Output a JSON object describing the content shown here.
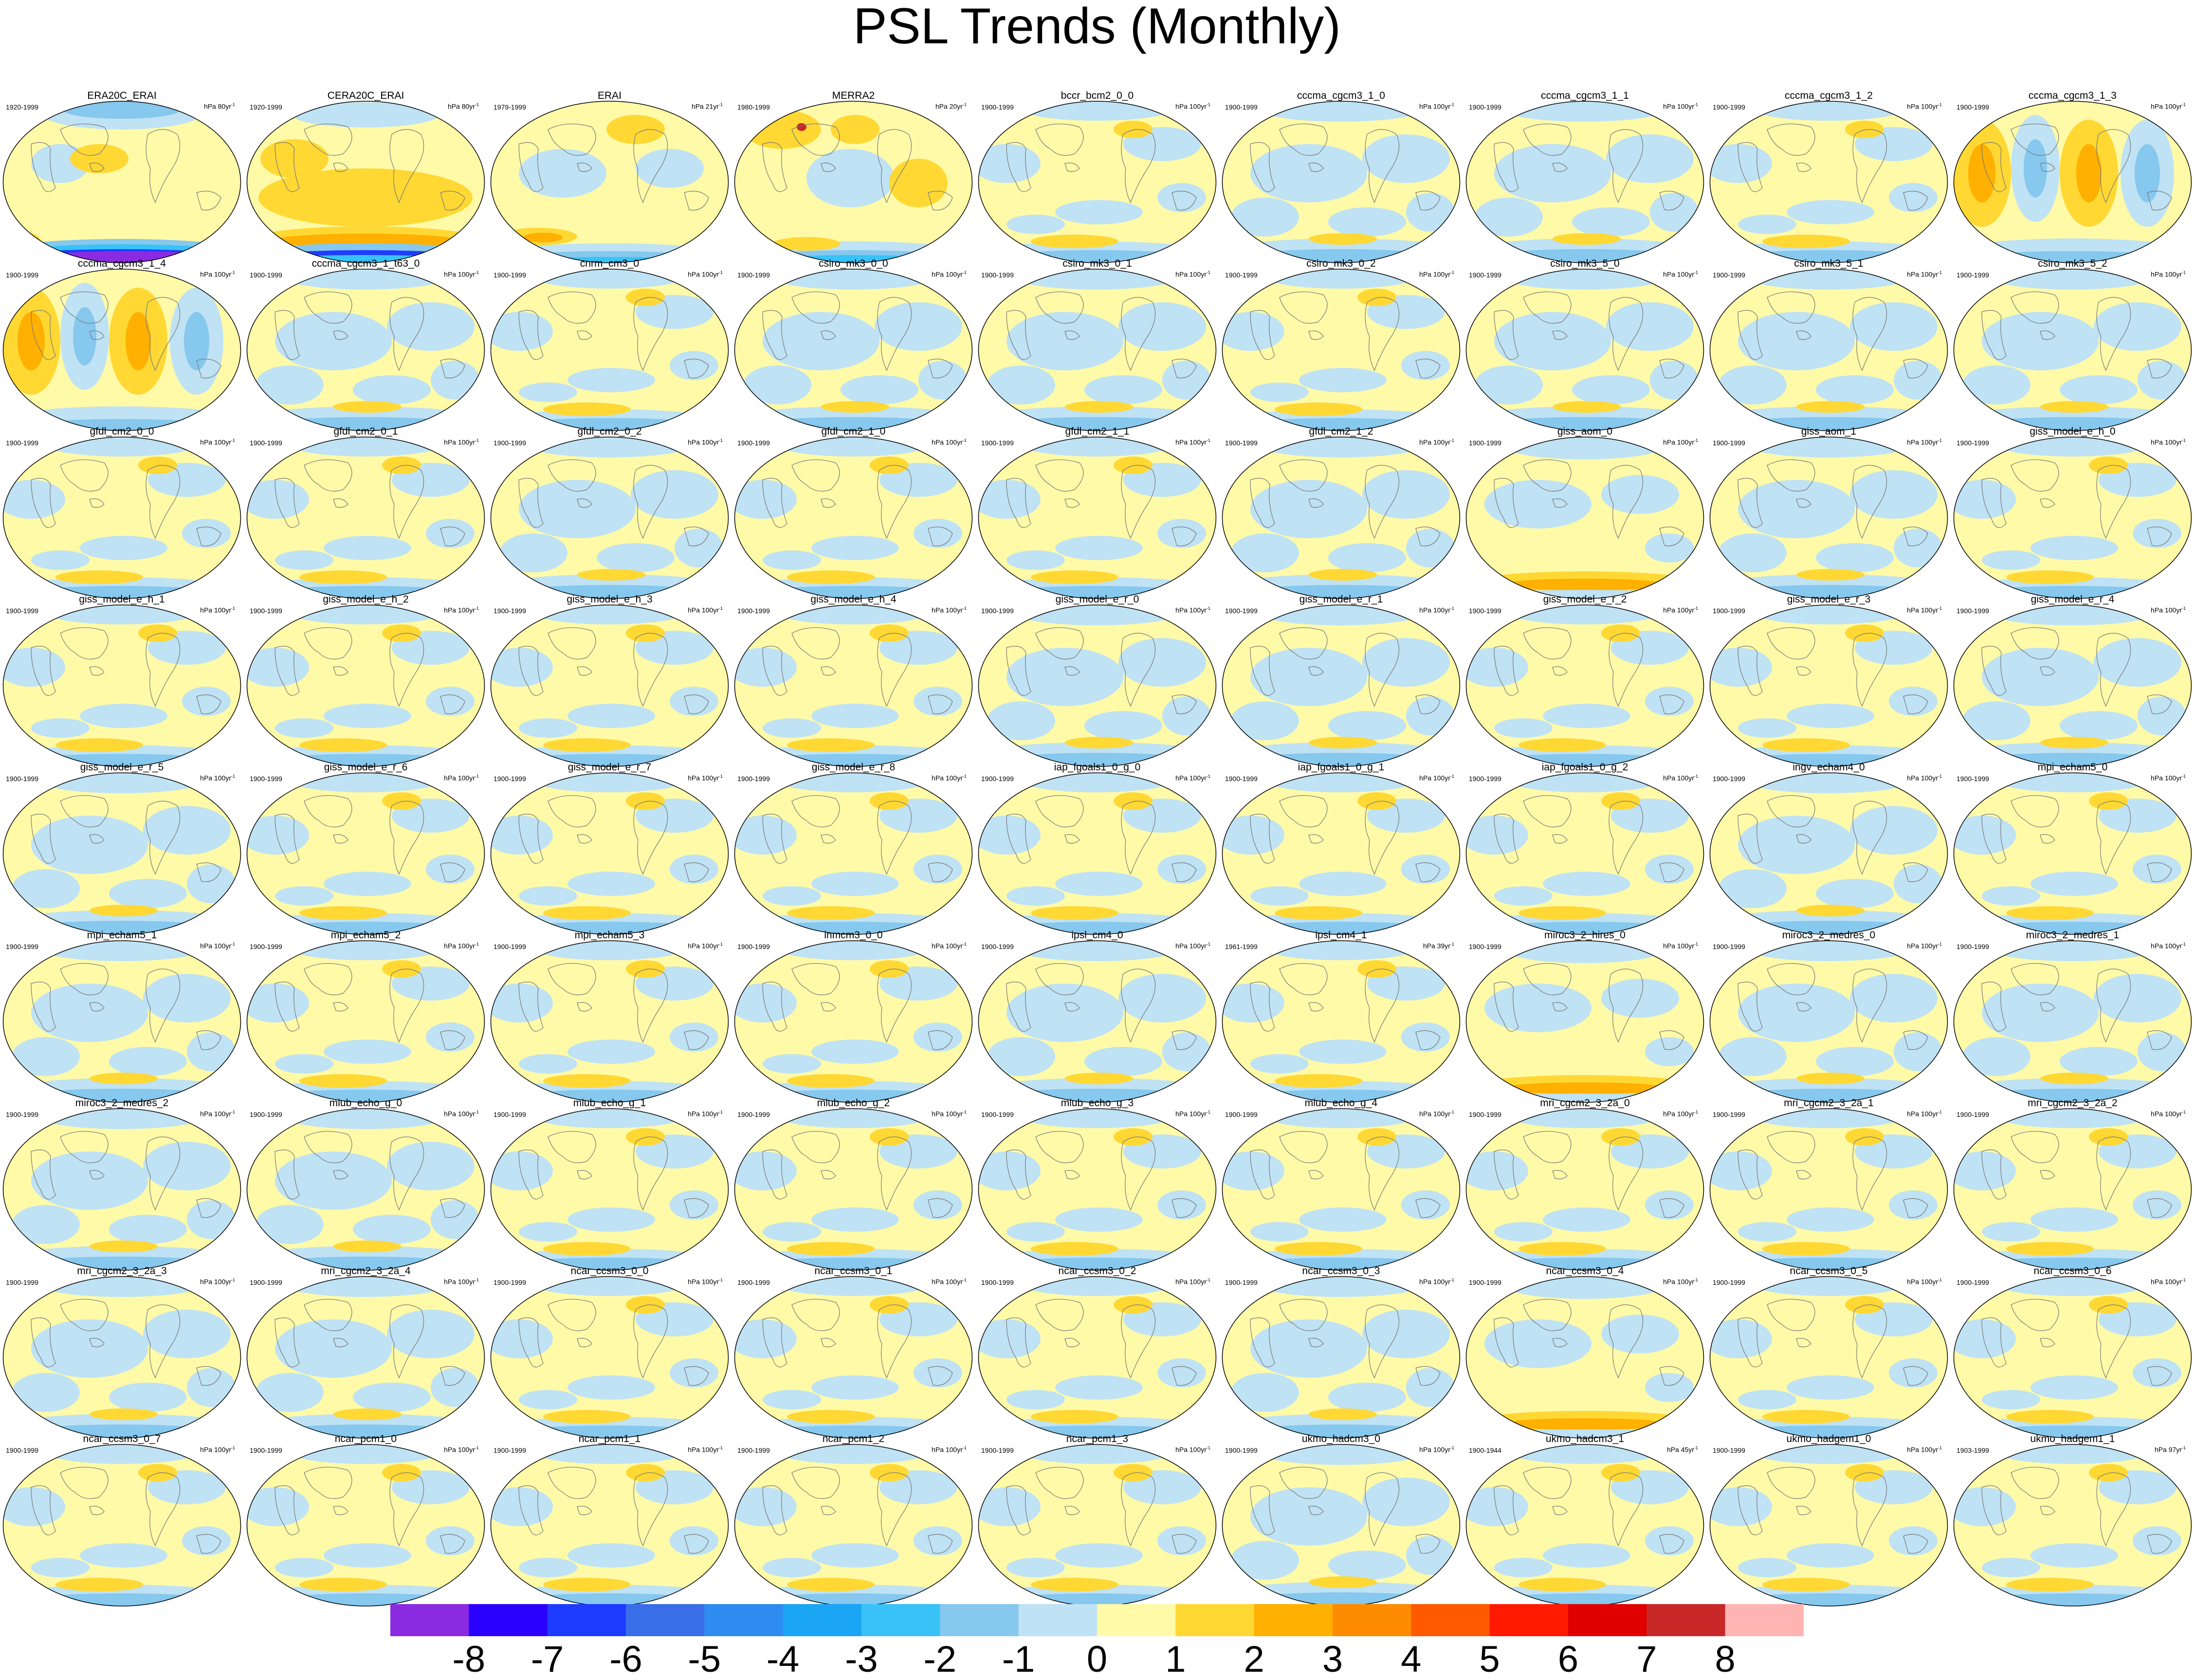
{
  "title": "PSL Trends (Monthly)",
  "colorbar": {
    "labels": [
      "-8",
      "-7",
      "-6",
      "-5",
      "-4",
      "-3",
      "-2",
      "-1",
      "0",
      "1",
      "2",
      "3",
      "4",
      "5",
      "6",
      "7",
      "8"
    ],
    "colors": [
      "#8a2be2",
      "#2a00ff",
      "#1e3cff",
      "#3a6ee8",
      "#2e8cf0",
      "#1aa6f4",
      "#38c2f8",
      "#86c8ee",
      "#bfe2f4",
      "#fffaa8",
      "#ffd834",
      "#ffb000",
      "#ff8c00",
      "#ff5a00",
      "#ff1a00",
      "#e00000",
      "#c82828",
      "#ffb4b4"
    ]
  },
  "panels": [
    {
      "name": "ERA20C_ERAI",
      "years": "1920-1999",
      "units": "hPa 80yr",
      "theme": "era20c"
    },
    {
      "name": "CERA20C_ERAI",
      "years": "1920-1999",
      "units": "hPa 80yr",
      "theme": "cera20c"
    },
    {
      "name": "ERAI",
      "years": "1979-1999",
      "units": "hPa 21yr",
      "theme": "erai"
    },
    {
      "name": "MERRA2",
      "years": "1980-1999",
      "units": "hPa 20yr",
      "theme": "merra"
    },
    {
      "name": "bccr_bcm2_0_0",
      "years": "1900-1999",
      "units": "hPa 100yr",
      "theme": "a"
    },
    {
      "name": "cccma_cgcm3_1_0",
      "years": "1900-1999",
      "units": "hPa 100yr",
      "theme": "b"
    },
    {
      "name": "cccma_cgcm3_1_1",
      "years": "1900-1999",
      "units": "hPa 100yr",
      "theme": "b"
    },
    {
      "name": "cccma_cgcm3_1_2",
      "years": "1900-1999",
      "units": "hPa 100yr",
      "theme": "a"
    },
    {
      "name": "cccma_cgcm3_1_3",
      "years": "1900-1999",
      "units": "hPa 100yr",
      "theme": "wave"
    },
    {
      "name": "cccma_cgcm3_1_4",
      "years": "1900-1999",
      "units": "hPa 100yr",
      "theme": "wave"
    },
    {
      "name": "cccma_cgcm3_1_t63_0",
      "years": "1900-1999",
      "units": "hPa 100yr",
      "theme": "b"
    },
    {
      "name": "cnrm_cm3_0",
      "years": "1900-1999",
      "units": "hPa 100yr",
      "theme": "a"
    },
    {
      "name": "csiro_mk3_0_0",
      "years": "1900-1999",
      "units": "hPa 100yr",
      "theme": "b"
    },
    {
      "name": "csiro_mk3_0_1",
      "years": "1900-1999",
      "units": "hPa 100yr",
      "theme": "b"
    },
    {
      "name": "csiro_mk3_0_2",
      "years": "1900-1999",
      "units": "hPa 100yr",
      "theme": "a"
    },
    {
      "name": "csiro_mk3_5_0",
      "years": "1900-1999",
      "units": "hPa 100yr",
      "theme": "b"
    },
    {
      "name": "csiro_mk3_5_1",
      "years": "1900-1999",
      "units": "hPa 100yr",
      "theme": "b"
    },
    {
      "name": "csiro_mk3_5_2",
      "years": "1900-1999",
      "units": "hPa 100yr",
      "theme": "b"
    },
    {
      "name": "gfdl_cm2_0_0",
      "years": "1900-1999",
      "units": "hPa 100yr",
      "theme": "a"
    },
    {
      "name": "gfdl_cm2_0_1",
      "years": "1900-1999",
      "units": "hPa 100yr",
      "theme": "a"
    },
    {
      "name": "gfdl_cm2_0_2",
      "years": "1900-1999",
      "units": "hPa 100yr",
      "theme": "b"
    },
    {
      "name": "gfdl_cm2_1_0",
      "years": "1900-1999",
      "units": "hPa 100yr",
      "theme": "a"
    },
    {
      "name": "gfdl_cm2_1_1",
      "years": "1900-1999",
      "units": "hPa 100yr",
      "theme": "a"
    },
    {
      "name": "gfdl_cm2_1_2",
      "years": "1900-1999",
      "units": "hPa 100yr",
      "theme": "b"
    },
    {
      "name": "giss_aom_0",
      "years": "1900-1999",
      "units": "hPa 100yr",
      "theme": "c"
    },
    {
      "name": "giss_aom_1",
      "years": "1900-1999",
      "units": "hPa 100yr",
      "theme": "b"
    },
    {
      "name": "giss_model_e_h_0",
      "years": "1900-1999",
      "units": "hPa 100yr",
      "theme": "a"
    },
    {
      "name": "giss_model_e_h_1",
      "years": "1900-1999",
      "units": "hPa 100yr",
      "theme": "a"
    },
    {
      "name": "giss_model_e_h_2",
      "years": "1900-1999",
      "units": "hPa 100yr",
      "theme": "a"
    },
    {
      "name": "giss_model_e_h_3",
      "years": "1900-1999",
      "units": "hPa 100yr",
      "theme": "a"
    },
    {
      "name": "giss_model_e_h_4",
      "years": "1900-1999",
      "units": "hPa 100yr",
      "theme": "a"
    },
    {
      "name": "giss_model_e_r_0",
      "years": "1900-1999",
      "units": "hPa 100yr",
      "theme": "b"
    },
    {
      "name": "giss_model_e_r_1",
      "years": "1900-1999",
      "units": "hPa 100yr",
      "theme": "b"
    },
    {
      "name": "giss_model_e_r_2",
      "years": "1900-1999",
      "units": "hPa 100yr",
      "theme": "a"
    },
    {
      "name": "giss_model_e_r_3",
      "years": "1900-1999",
      "units": "hPa 100yr",
      "theme": "a"
    },
    {
      "name": "giss_model_e_r_4",
      "years": "1900-1999",
      "units": "hPa 100yr",
      "theme": "b"
    },
    {
      "name": "giss_model_e_r_5",
      "years": "1900-1999",
      "units": "hPa 100yr",
      "theme": "b"
    },
    {
      "name": "giss_model_e_r_6",
      "years": "1900-1999",
      "units": "hPa 100yr",
      "theme": "a"
    },
    {
      "name": "giss_model_e_r_7",
      "years": "1900-1999",
      "units": "hPa 100yr",
      "theme": "a"
    },
    {
      "name": "giss_model_e_r_8",
      "years": "1900-1999",
      "units": "hPa 100yr",
      "theme": "a"
    },
    {
      "name": "iap_fgoals1_0_g_0",
      "years": "1900-1999",
      "units": "hPa 100yr",
      "theme": "a"
    },
    {
      "name": "iap_fgoals1_0_g_1",
      "years": "1900-1999",
      "units": "hPa 100yr",
      "theme": "a"
    },
    {
      "name": "iap_fgoals1_0_g_2",
      "years": "1900-1999",
      "units": "hPa 100yr",
      "theme": "a"
    },
    {
      "name": "ingv_echam4_0",
      "years": "1900-1999",
      "units": "hPa 100yr",
      "theme": "b"
    },
    {
      "name": "mpi_echam5_0",
      "years": "1900-1999",
      "units": "hPa 100yr",
      "theme": "a"
    },
    {
      "name": "mpi_echam5_1",
      "years": "1900-1999",
      "units": "hPa 100yr",
      "theme": "b"
    },
    {
      "name": "mpi_echam5_2",
      "years": "1900-1999",
      "units": "hPa 100yr",
      "theme": "a"
    },
    {
      "name": "mpi_echam5_3",
      "years": "1900-1999",
      "units": "hPa 100yr",
      "theme": "a"
    },
    {
      "name": "inmcm3_0_0",
      "years": "1900-1999",
      "units": "hPa 100yr",
      "theme": "a"
    },
    {
      "name": "ipsl_cm4_0",
      "years": "1900-1999",
      "units": "hPa 100yr",
      "theme": "b"
    },
    {
      "name": "ipsl_cm4_1",
      "years": "1961-1999",
      "units": "hPa 39yr",
      "theme": "a"
    },
    {
      "name": "miroc3_2_hires_0",
      "years": "1900-1999",
      "units": "hPa 100yr",
      "theme": "c"
    },
    {
      "name": "miroc3_2_medres_0",
      "years": "1900-1999",
      "units": "hPa 100yr",
      "theme": "b"
    },
    {
      "name": "miroc3_2_medres_1",
      "years": "1900-1999",
      "units": "hPa 100yr",
      "theme": "b"
    },
    {
      "name": "miroc3_2_medres_2",
      "years": "1900-1999",
      "units": "hPa 100yr",
      "theme": "b"
    },
    {
      "name": "miub_echo_g_0",
      "years": "1900-1999",
      "units": "hPa 100yr",
      "theme": "b"
    },
    {
      "name": "miub_echo_g_1",
      "years": "1900-1999",
      "units": "hPa 100yr",
      "theme": "a"
    },
    {
      "name": "miub_echo_g_2",
      "years": "1900-1999",
      "units": "hPa 100yr",
      "theme": "a"
    },
    {
      "name": "miub_echo_g_3",
      "years": "1900-1999",
      "units": "hPa 100yr",
      "theme": "a"
    },
    {
      "name": "miub_echo_g_4",
      "years": "1900-1999",
      "units": "hPa 100yr",
      "theme": "a"
    },
    {
      "name": "mri_cgcm2_3_2a_0",
      "years": "1900-1999",
      "units": "hPa 100yr",
      "theme": "a"
    },
    {
      "name": "mri_cgcm2_3_2a_1",
      "years": "1900-1999",
      "units": "hPa 100yr",
      "theme": "a"
    },
    {
      "name": "mri_cgcm2_3_2a_2",
      "years": "1900-1999",
      "units": "hPa 100yr",
      "theme": "a"
    },
    {
      "name": "mri_cgcm2_3_2a_3",
      "years": "1900-1999",
      "units": "hPa 100yr",
      "theme": "b"
    },
    {
      "name": "mri_cgcm2_3_2a_4",
      "years": "1900-1999",
      "units": "hPa 100yr",
      "theme": "b"
    },
    {
      "name": "ncar_ccsm3_0_0",
      "years": "1900-1999",
      "units": "hPa 100yr",
      "theme": "a"
    },
    {
      "name": "ncar_ccsm3_0_1",
      "years": "1900-1999",
      "units": "hPa 100yr",
      "theme": "a"
    },
    {
      "name": "ncar_ccsm3_0_2",
      "years": "1900-1999",
      "units": "hPa 100yr",
      "theme": "a"
    },
    {
      "name": "ncar_ccsm3_0_3",
      "years": "1900-1999",
      "units": "hPa 100yr",
      "theme": "b"
    },
    {
      "name": "ncar_ccsm3_0_4",
      "years": "1900-1999",
      "units": "hPa 100yr",
      "theme": "c"
    },
    {
      "name": "ncar_ccsm3_0_5",
      "years": "1900-1999",
      "units": "hPa 100yr",
      "theme": "a"
    },
    {
      "name": "ncar_ccsm3_0_6",
      "years": "1900-1999",
      "units": "hPa 100yr",
      "theme": "a"
    },
    {
      "name": "ncar_ccsm3_0_7",
      "years": "1900-1999",
      "units": "hPa 100yr",
      "theme": "a"
    },
    {
      "name": "ncar_pcm1_0",
      "years": "1900-1999",
      "units": "hPa 100yr",
      "theme": "a"
    },
    {
      "name": "ncar_pcm1_1",
      "years": "1900-1999",
      "units": "hPa 100yr",
      "theme": "a"
    },
    {
      "name": "ncar_pcm1_2",
      "years": "1900-1999",
      "units": "hPa 100yr",
      "theme": "a"
    },
    {
      "name": "ncar_pcm1_3",
      "years": "1900-1999",
      "units": "hPa 100yr",
      "theme": "a"
    },
    {
      "name": "ukmo_hadcm3_0",
      "years": "1900-1999",
      "units": "hPa 100yr",
      "theme": "b"
    },
    {
      "name": "ukmo_hadcm3_1",
      "years": "1900-1944",
      "units": "hPa 45yr",
      "theme": "a"
    },
    {
      "name": "ukmo_hadgem1_0",
      "years": "1900-1999",
      "units": "hPa 100yr",
      "theme": "a"
    },
    {
      "name": "ukmo_hadgem1_1",
      "years": "1903-1999",
      "units": "hPa 97yr",
      "theme": "a"
    }
  ]
}
